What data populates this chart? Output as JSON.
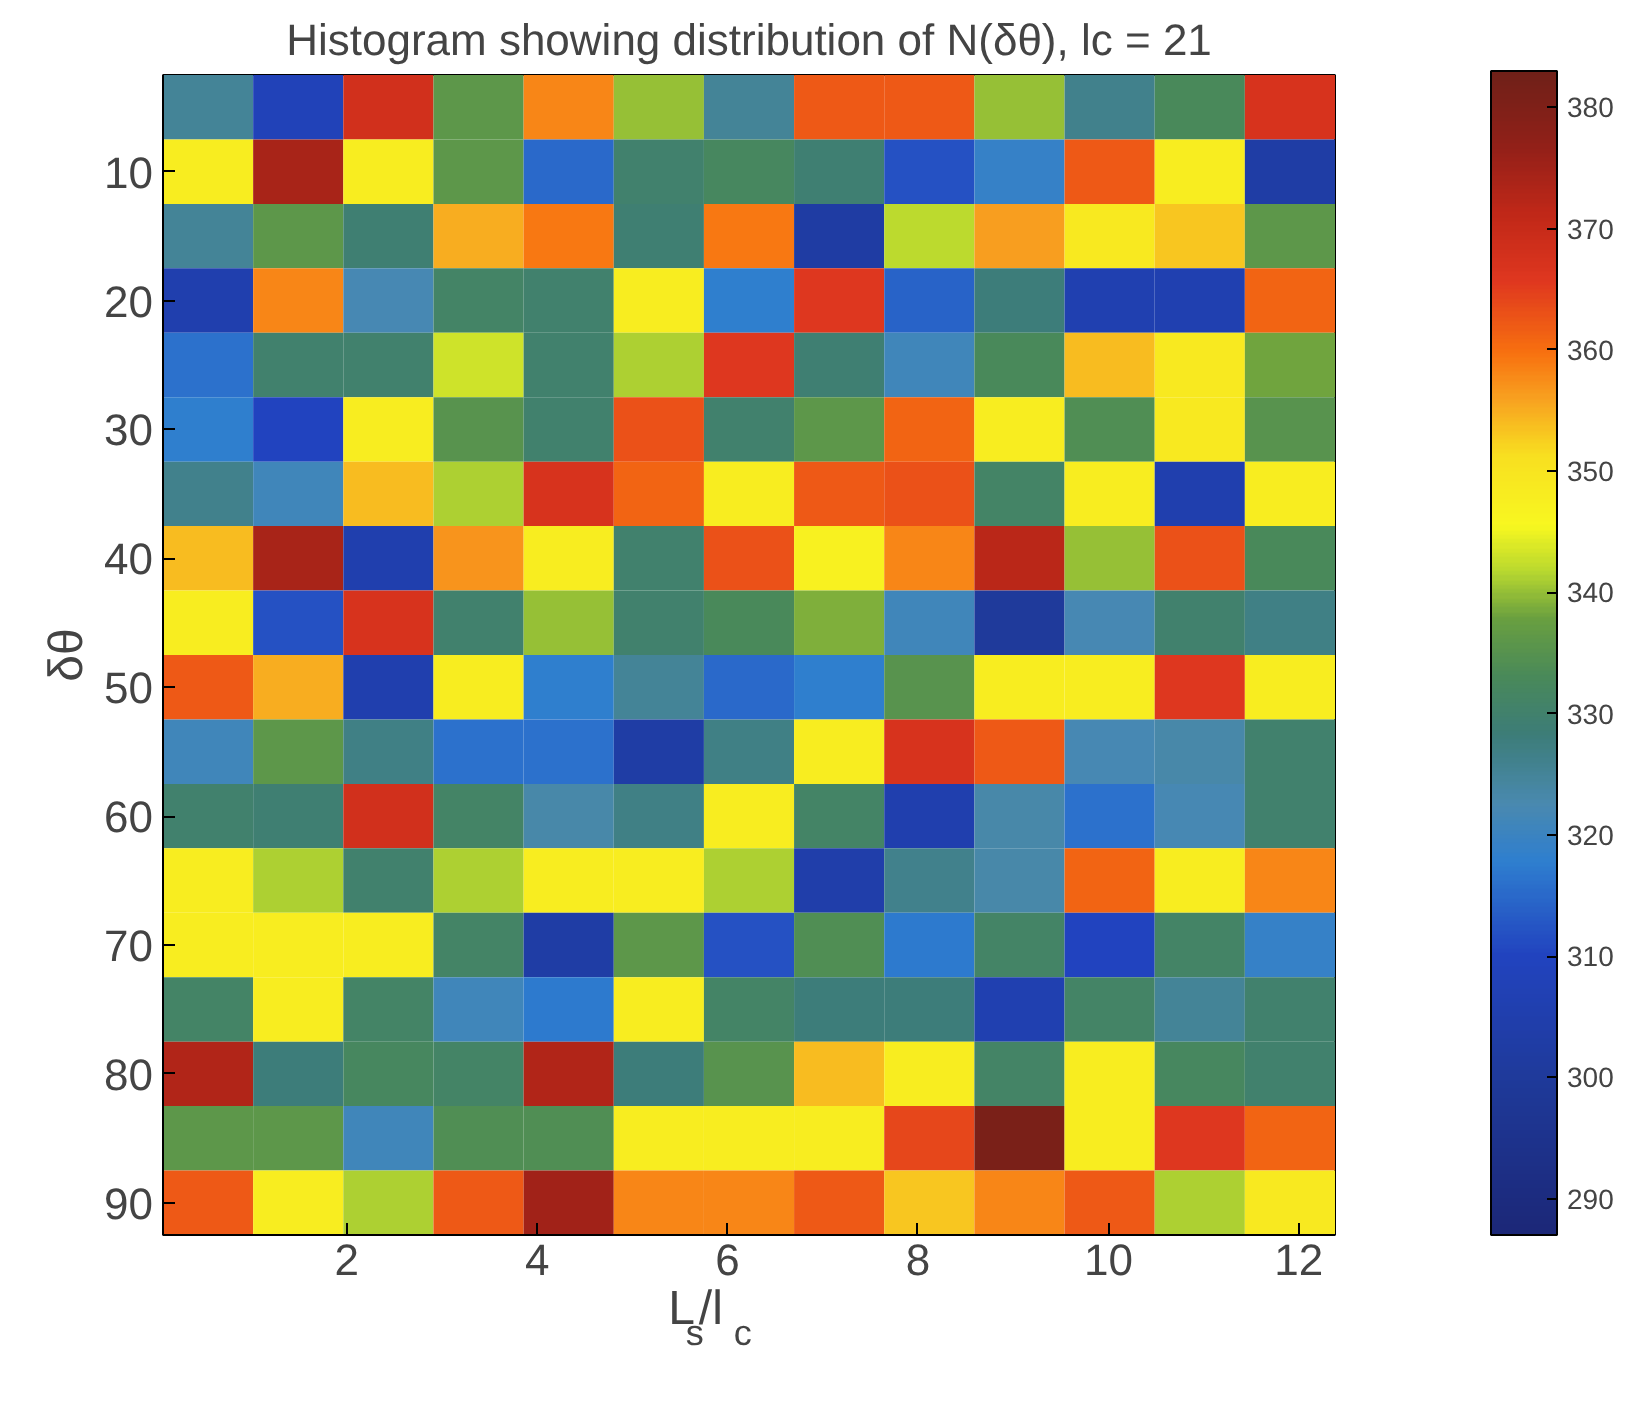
{
  "chart_data": {
    "type": "heatmap",
    "title": "Histogram showing distribution of N(δθ), lc = 21",
    "xlabel": "L$_{s}$/l$_{c}$",
    "ylabel": "δθ",
    "xlim": [
      0.07,
      12.38
    ],
    "xticks": [
      2,
      4,
      6,
      8,
      10,
      12
    ],
    "ylim": [
      92.5,
      2.5
    ],
    "yticks": [
      10,
      20,
      30,
      40,
      50,
      60,
      70,
      80,
      90
    ],
    "clim": [
      287,
      383
    ],
    "cticks": [
      290,
      300,
      310,
      320,
      330,
      340,
      350,
      360,
      370,
      380
    ],
    "cells": [
      [
        325,
        308,
        368,
        336,
        358,
        340,
        325,
        362,
        362,
        340,
        326,
        333,
        367
      ],
      [
        348,
        374,
        348,
        336,
        315,
        330,
        332,
        329,
        312,
        319,
        362,
        348,
        303
      ],
      [
        325,
        336,
        329,
        355,
        359,
        329,
        359,
        302,
        342,
        356,
        349,
        353,
        336
      ],
      [
        305,
        358,
        322,
        331,
        330,
        348,
        318,
        366,
        314,
        328,
        306,
        306,
        361
      ],
      [
        316,
        330,
        330,
        343,
        330,
        341,
        366,
        329,
        321,
        333,
        354,
        349,
        338
      ],
      [
        318,
        310,
        348,
        335,
        330,
        363,
        330,
        336,
        361,
        348,
        334,
        349,
        335
      ],
      [
        326,
        321,
        354,
        341,
        367,
        361,
        348,
        362,
        363,
        331,
        348,
        305,
        348
      ],
      [
        354,
        374,
        305,
        357,
        348,
        330,
        363,
        347,
        358,
        372,
        340,
        363,
        333
      ],
      [
        348,
        312,
        367,
        330,
        340,
        330,
        333,
        339,
        321,
        300,
        322,
        330,
        327
      ],
      [
        362,
        355,
        305,
        348,
        318,
        325,
        315,
        318,
        335,
        348,
        348,
        366,
        348
      ],
      [
        321,
        336,
        327,
        316,
        316,
        303,
        327,
        348,
        367,
        362,
        322,
        323,
        330
      ],
      [
        330,
        329,
        368,
        331,
        323,
        327,
        348,
        331,
        305,
        323,
        316,
        322,
        330
      ],
      [
        348,
        341,
        330,
        341,
        348,
        348,
        341,
        304,
        326,
        323,
        361,
        348,
        358
      ],
      [
        348,
        348,
        348,
        331,
        303,
        336,
        312,
        334,
        317,
        331,
        310,
        331,
        319
      ],
      [
        331,
        348,
        331,
        321,
        317,
        348,
        331,
        328,
        328,
        306,
        331,
        325,
        330
      ],
      [
        373,
        328,
        332,
        331,
        373,
        328,
        335,
        354,
        348,
        331,
        348,
        332,
        330
      ],
      [
        336,
        336,
        321,
        334,
        334,
        348,
        348,
        348,
        364,
        381,
        348,
        366,
        361
      ],
      [
        362,
        348,
        341,
        362,
        375,
        358,
        358,
        362,
        353,
        358,
        362,
        341,
        349
      ]
    ]
  }
}
